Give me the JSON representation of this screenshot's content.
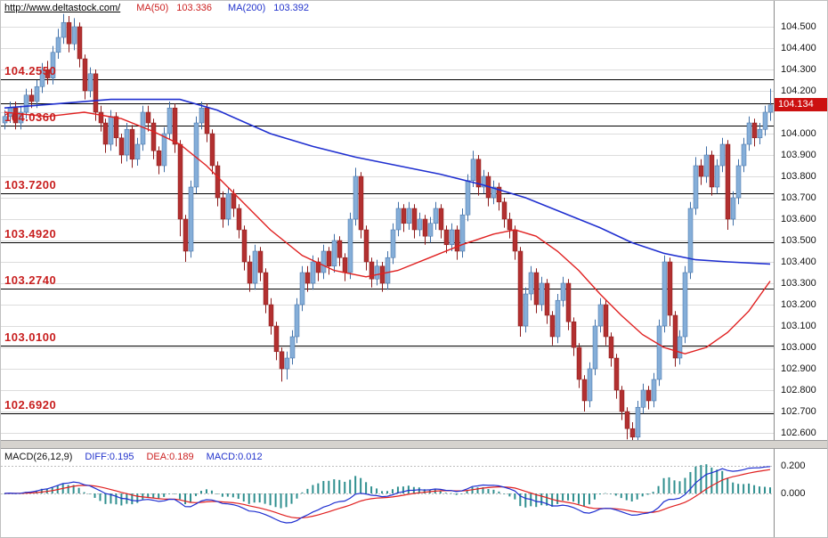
{
  "header": {
    "url": "http://www.deltastock.com/",
    "ma50_label": "MA(50)",
    "ma50_value": "103.336",
    "ma200_label": "MA(200)",
    "ma200_value": "103.392"
  },
  "colors": {
    "up_fill": "#85aed8",
    "up_stroke": "#3f6ea6",
    "down_fill": "#b23030",
    "down_stroke": "#8b1a1a",
    "ma50": "#e02020",
    "ma200": "#1f2fd0",
    "level_line": "#000000",
    "level_label": "#c81e1e",
    "grid": "#dcdcdc",
    "price_box": "#cc1111",
    "macd_hist": "#2f8f8f",
    "macd_diff": "#1f2fd0",
    "macd_dea": "#e02020"
  },
  "chart_data": {
    "type": "candlestick",
    "title": "http://www.deltastock.com/",
    "current_price": "104.134",
    "y_axis": {
      "ticks": [
        "104.500",
        "104.400",
        "104.300",
        "104.200",
        "104.000",
        "103.900",
        "103.800",
        "103.700",
        "103.600",
        "103.500",
        "103.400",
        "103.300",
        "103.200",
        "103.100",
        "103.000",
        "102.900",
        "102.800",
        "102.700",
        "102.600"
      ],
      "grid_max": 104.5,
      "grid_min": 102.6,
      "grid_step": 0.1
    },
    "levels": [
      {
        "label": "104.2550",
        "value": 104.255
      },
      {
        "label": "",
        "value": 104.143
      },
      {
        "label": "104.0360",
        "value": 104.036
      },
      {
        "label": "103.7200",
        "value": 103.72
      },
      {
        "label": "103.4920",
        "value": 103.492
      },
      {
        "label": "103.2740",
        "value": 103.274
      },
      {
        "label": "103.0100",
        "value": 103.01
      },
      {
        "label": "102.6920",
        "value": 102.692
      }
    ],
    "candles": [
      [
        104.05,
        104.11,
        104.02,
        104.08
      ],
      [
        104.08,
        104.15,
        104.05,
        104.12
      ],
      [
        104.12,
        104.15,
        104.02,
        104.05
      ],
      [
        104.05,
        104.13,
        104.02,
        104.1
      ],
      [
        104.1,
        104.21,
        104.07,
        104.18
      ],
      [
        104.18,
        104.21,
        104.12,
        104.15
      ],
      [
        104.15,
        104.25,
        104.12,
        104.22
      ],
      [
        104.22,
        104.33,
        104.19,
        104.3
      ],
      [
        104.3,
        104.34,
        104.23,
        104.26
      ],
      [
        104.26,
        104.41,
        104.23,
        104.38
      ],
      [
        104.38,
        104.49,
        104.35,
        104.45
      ],
      [
        104.45,
        104.56,
        104.42,
        104.52
      ],
      [
        104.52,
        104.55,
        104.38,
        104.42
      ],
      [
        104.42,
        104.54,
        104.39,
        104.5
      ],
      [
        104.5,
        104.52,
        104.31,
        104.35
      ],
      [
        104.35,
        104.37,
        104.16,
        104.2
      ],
      [
        104.2,
        104.31,
        104.17,
        104.28
      ],
      [
        104.28,
        104.3,
        104.06,
        104.1
      ],
      [
        104.1,
        104.13,
        104.01,
        104.05
      ],
      [
        104.05,
        104.07,
        103.91,
        103.95
      ],
      [
        103.95,
        104.11,
        103.92,
        104.08
      ],
      [
        104.08,
        104.1,
        103.94,
        103.98
      ],
      [
        103.98,
        104.0,
        103.86,
        103.9
      ],
      [
        103.9,
        104.05,
        103.87,
        104.02
      ],
      [
        104.02,
        104.04,
        103.84,
        103.88
      ],
      [
        103.88,
        103.98,
        103.85,
        103.95
      ],
      [
        103.95,
        104.13,
        103.92,
        104.1
      ],
      [
        104.1,
        104.13,
        104.01,
        104.05
      ],
      [
        104.05,
        104.07,
        103.88,
        103.92
      ],
      [
        103.92,
        103.94,
        103.81,
        103.85
      ],
      [
        103.85,
        104.03,
        103.82,
        104.0
      ],
      [
        104.0,
        104.15,
        103.97,
        104.12
      ],
      [
        104.12,
        104.14,
        103.91,
        103.95
      ],
      [
        103.95,
        103.97,
        103.52,
        103.6
      ],
      [
        103.6,
        103.62,
        103.4,
        103.45
      ],
      [
        103.45,
        103.78,
        103.42,
        103.75
      ],
      [
        103.75,
        104.08,
        103.72,
        104.05
      ],
      [
        104.05,
        104.15,
        104.02,
        104.12
      ],
      [
        104.12,
        104.14,
        103.96,
        104.0
      ],
      [
        104.0,
        104.02,
        103.81,
        103.85
      ],
      [
        103.85,
        103.87,
        103.66,
        103.7
      ],
      [
        103.7,
        103.73,
        103.56,
        103.6
      ],
      [
        103.6,
        103.75,
        103.57,
        103.72
      ],
      [
        103.72,
        103.74,
        103.61,
        103.65
      ],
      [
        103.65,
        103.67,
        103.51,
        103.55
      ],
      [
        103.55,
        103.57,
        103.36,
        103.4
      ],
      [
        103.4,
        103.43,
        103.26,
        103.3
      ],
      [
        103.3,
        103.48,
        103.27,
        103.45
      ],
      [
        103.45,
        103.47,
        103.31,
        103.35
      ],
      [
        103.35,
        103.37,
        103.16,
        103.2
      ],
      [
        103.2,
        103.23,
        103.06,
        103.1
      ],
      [
        103.1,
        103.12,
        102.94,
        102.98
      ],
      [
        102.98,
        103.0,
        102.84,
        102.9
      ],
      [
        102.9,
        102.98,
        102.85,
        102.95
      ],
      [
        102.95,
        103.08,
        102.92,
        103.05
      ],
      [
        103.05,
        103.23,
        103.02,
        103.2
      ],
      [
        103.2,
        103.38,
        103.17,
        103.35
      ],
      [
        103.35,
        103.38,
        103.26,
        103.3
      ],
      [
        103.3,
        103.43,
        103.27,
        103.4
      ],
      [
        103.4,
        103.42,
        103.31,
        103.35
      ],
      [
        103.35,
        103.48,
        103.32,
        103.45
      ],
      [
        103.45,
        103.47,
        103.34,
        103.38
      ],
      [
        103.38,
        103.53,
        103.35,
        103.5
      ],
      [
        103.5,
        103.52,
        103.38,
        103.42
      ],
      [
        103.42,
        103.44,
        103.31,
        103.35
      ],
      [
        103.35,
        103.63,
        103.32,
        103.6
      ],
      [
        103.6,
        103.84,
        103.57,
        103.8
      ],
      [
        103.8,
        103.82,
        103.51,
        103.55
      ],
      [
        103.55,
        103.57,
        103.36,
        103.4
      ],
      [
        103.4,
        103.42,
        103.28,
        103.32
      ],
      [
        103.32,
        103.41,
        103.29,
        103.38
      ],
      [
        103.38,
        103.4,
        103.26,
        103.3
      ],
      [
        103.3,
        103.45,
        103.27,
        103.42
      ],
      [
        103.42,
        103.58,
        103.39,
        103.55
      ],
      [
        103.55,
        103.68,
        103.52,
        103.65
      ],
      [
        103.65,
        103.67,
        103.54,
        103.58
      ],
      [
        103.58,
        103.68,
        103.55,
        103.65
      ],
      [
        103.65,
        103.67,
        103.51,
        103.55
      ],
      [
        103.55,
        103.63,
        103.52,
        103.6
      ],
      [
        103.6,
        103.62,
        103.48,
        103.52
      ],
      [
        103.52,
        103.61,
        103.49,
        103.58
      ],
      [
        103.58,
        103.68,
        103.55,
        103.65
      ],
      [
        103.65,
        103.67,
        103.51,
        103.55
      ],
      [
        103.55,
        103.57,
        103.44,
        103.48
      ],
      [
        103.48,
        103.58,
        103.45,
        103.55
      ],
      [
        103.55,
        103.57,
        103.41,
        103.45
      ],
      [
        103.45,
        103.65,
        103.42,
        103.62
      ],
      [
        103.62,
        103.81,
        103.59,
        103.78
      ],
      [
        103.78,
        103.92,
        103.75,
        103.88
      ],
      [
        103.88,
        103.9,
        103.71,
        103.75
      ],
      [
        103.75,
        103.83,
        103.72,
        103.8
      ],
      [
        103.8,
        103.82,
        103.66,
        103.7
      ],
      [
        103.7,
        103.78,
        103.67,
        103.75
      ],
      [
        103.75,
        103.77,
        103.64,
        103.68
      ],
      [
        103.68,
        103.7,
        103.56,
        103.6
      ],
      [
        103.6,
        103.63,
        103.51,
        103.55
      ],
      [
        103.55,
        103.57,
        103.41,
        103.45
      ],
      [
        103.45,
        103.47,
        103.05,
        103.1
      ],
      [
        103.1,
        103.28,
        103.07,
        103.25
      ],
      [
        103.25,
        103.38,
        103.22,
        103.35
      ],
      [
        103.35,
        103.37,
        103.16,
        103.2
      ],
      [
        103.2,
        103.33,
        103.17,
        103.3
      ],
      [
        103.3,
        103.32,
        103.11,
        103.15
      ],
      [
        103.15,
        103.17,
        103.01,
        103.05
      ],
      [
        103.05,
        103.25,
        103.02,
        103.22
      ],
      [
        103.22,
        103.33,
        103.19,
        103.3
      ],
      [
        103.3,
        103.32,
        103.08,
        103.12
      ],
      [
        103.12,
        103.14,
        102.96,
        103.0
      ],
      [
        103.0,
        103.02,
        102.81,
        102.85
      ],
      [
        102.85,
        102.87,
        102.7,
        102.75
      ],
      [
        102.75,
        102.93,
        102.72,
        102.9
      ],
      [
        102.9,
        103.13,
        102.87,
        103.1
      ],
      [
        103.1,
        103.23,
        103.07,
        103.2
      ],
      [
        103.2,
        103.22,
        103.01,
        103.05
      ],
      [
        103.05,
        103.07,
        102.91,
        102.95
      ],
      [
        102.95,
        102.97,
        102.76,
        102.8
      ],
      [
        102.8,
        102.82,
        102.66,
        102.7
      ],
      [
        102.7,
        102.72,
        102.57,
        102.62
      ],
      [
        102.62,
        102.65,
        102.55,
        102.58
      ],
      [
        102.58,
        102.75,
        102.55,
        102.72
      ],
      [
        102.72,
        102.83,
        102.69,
        102.8
      ],
      [
        102.8,
        102.82,
        102.71,
        102.75
      ],
      [
        102.75,
        102.88,
        102.72,
        102.85
      ],
      [
        102.85,
        103.13,
        102.82,
        103.1
      ],
      [
        103.1,
        103.43,
        103.07,
        103.4
      ],
      [
        103.4,
        103.42,
        103.1,
        103.15
      ],
      [
        103.15,
        103.17,
        102.91,
        102.95
      ],
      [
        102.95,
        103.08,
        102.92,
        103.05
      ],
      [
        103.05,
        103.38,
        103.02,
        103.35
      ],
      [
        103.35,
        103.68,
        103.32,
        103.65
      ],
      [
        103.65,
        103.89,
        103.62,
        103.85
      ],
      [
        103.85,
        103.88,
        103.76,
        103.8
      ],
      [
        103.8,
        103.94,
        103.77,
        103.9
      ],
      [
        103.9,
        103.92,
        103.71,
        103.75
      ],
      [
        103.75,
        103.88,
        103.72,
        103.85
      ],
      [
        103.85,
        103.98,
        103.82,
        103.95
      ],
      [
        103.95,
        103.97,
        103.55,
        103.6
      ],
      [
        103.6,
        103.73,
        103.57,
        103.7
      ],
      [
        103.7,
        103.88,
        103.67,
        103.85
      ],
      [
        103.85,
        103.98,
        103.82,
        103.95
      ],
      [
        103.95,
        104.08,
        103.92,
        104.05
      ],
      [
        104.05,
        104.07,
        103.94,
        103.98
      ],
      [
        103.98,
        104.05,
        103.95,
        104.02
      ],
      [
        104.02,
        104.13,
        103.99,
        104.1
      ],
      [
        104.1,
        104.21,
        104.06,
        104.134
      ]
    ],
    "ma50_points": [
      [
        0,
        104.1
      ],
      [
        8,
        104.08
      ],
      [
        15,
        104.1
      ],
      [
        22,
        104.07
      ],
      [
        28,
        104.01
      ],
      [
        33,
        103.95
      ],
      [
        38,
        103.85
      ],
      [
        44,
        103.7
      ],
      [
        50,
        103.55
      ],
      [
        56,
        103.43
      ],
      [
        62,
        103.36
      ],
      [
        68,
        103.33
      ],
      [
        74,
        103.36
      ],
      [
        80,
        103.42
      ],
      [
        86,
        103.48
      ],
      [
        92,
        103.53
      ],
      [
        96,
        103.55
      ],
      [
        100,
        103.52
      ],
      [
        104,
        103.45
      ],
      [
        108,
        103.36
      ],
      [
        112,
        103.25
      ],
      [
        116,
        103.15
      ],
      [
        120,
        103.06
      ],
      [
        124,
        103.0
      ],
      [
        128,
        102.97
      ],
      [
        132,
        103.0
      ],
      [
        136,
        103.07
      ],
      [
        140,
        103.17
      ],
      [
        144,
        103.31
      ]
    ],
    "ma200_points": [
      [
        0,
        104.12
      ],
      [
        10,
        104.14
      ],
      [
        20,
        104.16
      ],
      [
        33,
        104.16
      ],
      [
        40,
        104.11
      ],
      [
        50,
        104.0
      ],
      [
        58,
        103.94
      ],
      [
        66,
        103.89
      ],
      [
        74,
        103.85
      ],
      [
        82,
        103.81
      ],
      [
        90,
        103.76
      ],
      [
        98,
        103.7
      ],
      [
        106,
        103.62
      ],
      [
        112,
        103.56
      ],
      [
        118,
        103.49
      ],
      [
        124,
        103.44
      ],
      [
        130,
        103.41
      ],
      [
        136,
        103.4
      ],
      [
        144,
        103.39
      ]
    ],
    "macd": {
      "title": "MACD(26,12,9)",
      "diff_label": "DIFF:0.195",
      "dea_label": "DEA:0.189",
      "macd_label": "MACD:0.012",
      "diff_value": 0.195,
      "dea_value": 0.189,
      "macd_value": 0.012,
      "params": [
        26,
        12,
        9
      ],
      "axis_ticks": [
        "0.200",
        "0.000"
      ],
      "axis_tick_values": [
        0.2,
        0.0
      ]
    }
  }
}
